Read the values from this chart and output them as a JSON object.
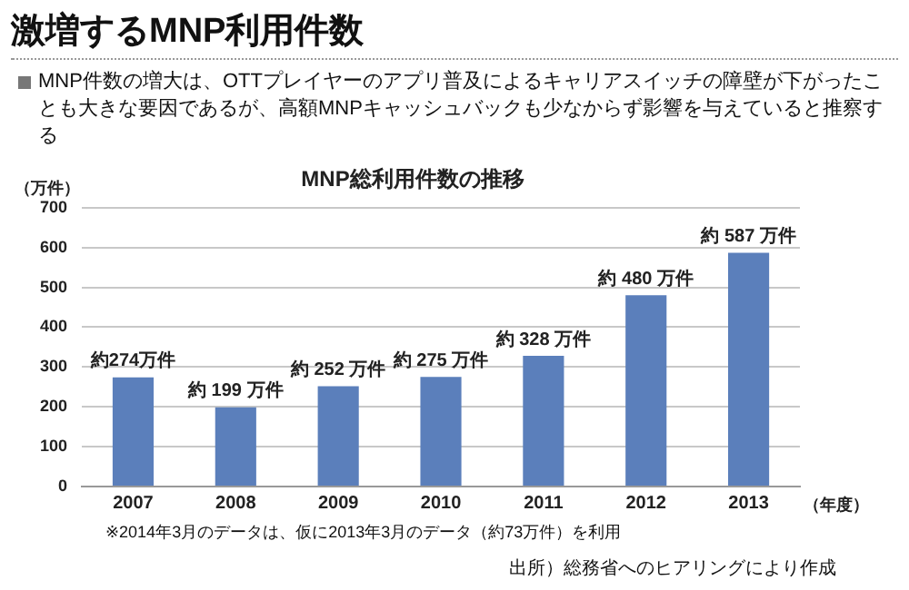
{
  "chart_data": {
    "type": "bar",
    "title": "激増するMNP利用件数",
    "subtitle": "MNP総利用件数の推移",
    "ylabel": "（万件）",
    "xlabel": "（年度）",
    "categories": [
      "2007",
      "2008",
      "2009",
      "2010",
      "2011",
      "2012",
      "2013"
    ],
    "values": [
      274,
      199,
      252,
      275,
      328,
      480,
      587
    ],
    "value_labels": [
      "約274万件",
      "約 199 万件",
      "約 252 万件",
      "約 275 万件",
      "約 328 万件",
      "約 480 万件",
      "約 587 万件"
    ],
    "color": "#5b7fbb",
    "ylim": [
      0,
      700
    ],
    "yticks": [
      0,
      100,
      200,
      300,
      400,
      500,
      600,
      700
    ],
    "grid": "y",
    "legend": false,
    "annotations": [
      "MNP件数の増大は、OTTプレイヤーのアプリ普及によるキャリアスイッチの障壁が下がったことも大きな要因であるが、高額MNPキャッシュバックも少なからず影響を与えていると推察する",
      "※2014年3月のデータは、仮に2013年3月のデータ（約73万件）を利用",
      "出所）総務省へのヒアリングにより作成"
    ]
  }
}
